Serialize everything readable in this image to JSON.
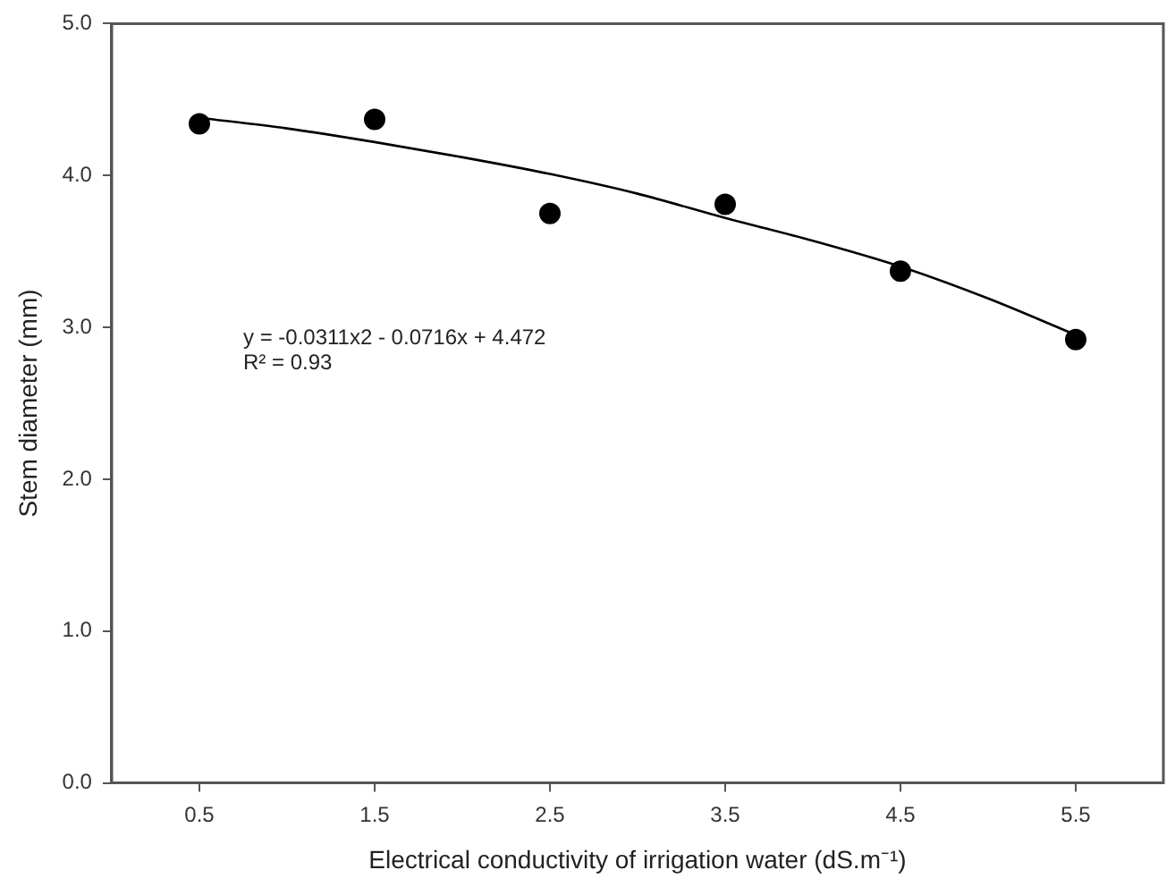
{
  "chart_data": {
    "type": "scatter",
    "xlabel": "Electrical conductivity of irrigation water (dS.m⁻¹)",
    "ylabel": "Stem diameter (mm)",
    "xlim": [
      0,
      6
    ],
    "ylim": [
      0,
      5
    ],
    "xticks": [
      0.5,
      1.5,
      2.5,
      3.5,
      4.5,
      5.5
    ],
    "yticks": [
      {
        "value": 0,
        "label": "0.0"
      },
      {
        "value": 1,
        "label": "1.0"
      },
      {
        "value": 2,
        "label": "2.0"
      },
      {
        "value": 3,
        "label": "3.0"
      },
      {
        "value": 4,
        "label": "4.0"
      },
      {
        "value": 5,
        "label": "5.0"
      }
    ],
    "grid": false,
    "legend": false,
    "marker": "circle",
    "annotations": [
      "y = -0.0311x2 - 0.0716x + 4.472",
      "R² = 0.93"
    ],
    "series": [
      {
        "type": "scatter",
        "color": "#000000",
        "x": [
          0.5,
          1.5,
          2.5,
          3.5,
          4.5,
          5.5
        ],
        "values": [
          4.34,
          4.37,
          3.75,
          3.81,
          3.37,
          2.92
        ]
      },
      {
        "type": "line",
        "color": "#000000",
        "line_style": "solid",
        "marker": "none",
        "x": [
          0.5,
          1.0,
          1.5,
          2.0,
          2.5,
          3.0,
          3.5,
          4.0,
          4.5,
          5.0,
          5.5
        ],
        "values": [
          4.38,
          4.31,
          4.22,
          4.12,
          4.01,
          3.88,
          3.72,
          3.57,
          3.4,
          3.19,
          2.95
        ]
      }
    ]
  }
}
